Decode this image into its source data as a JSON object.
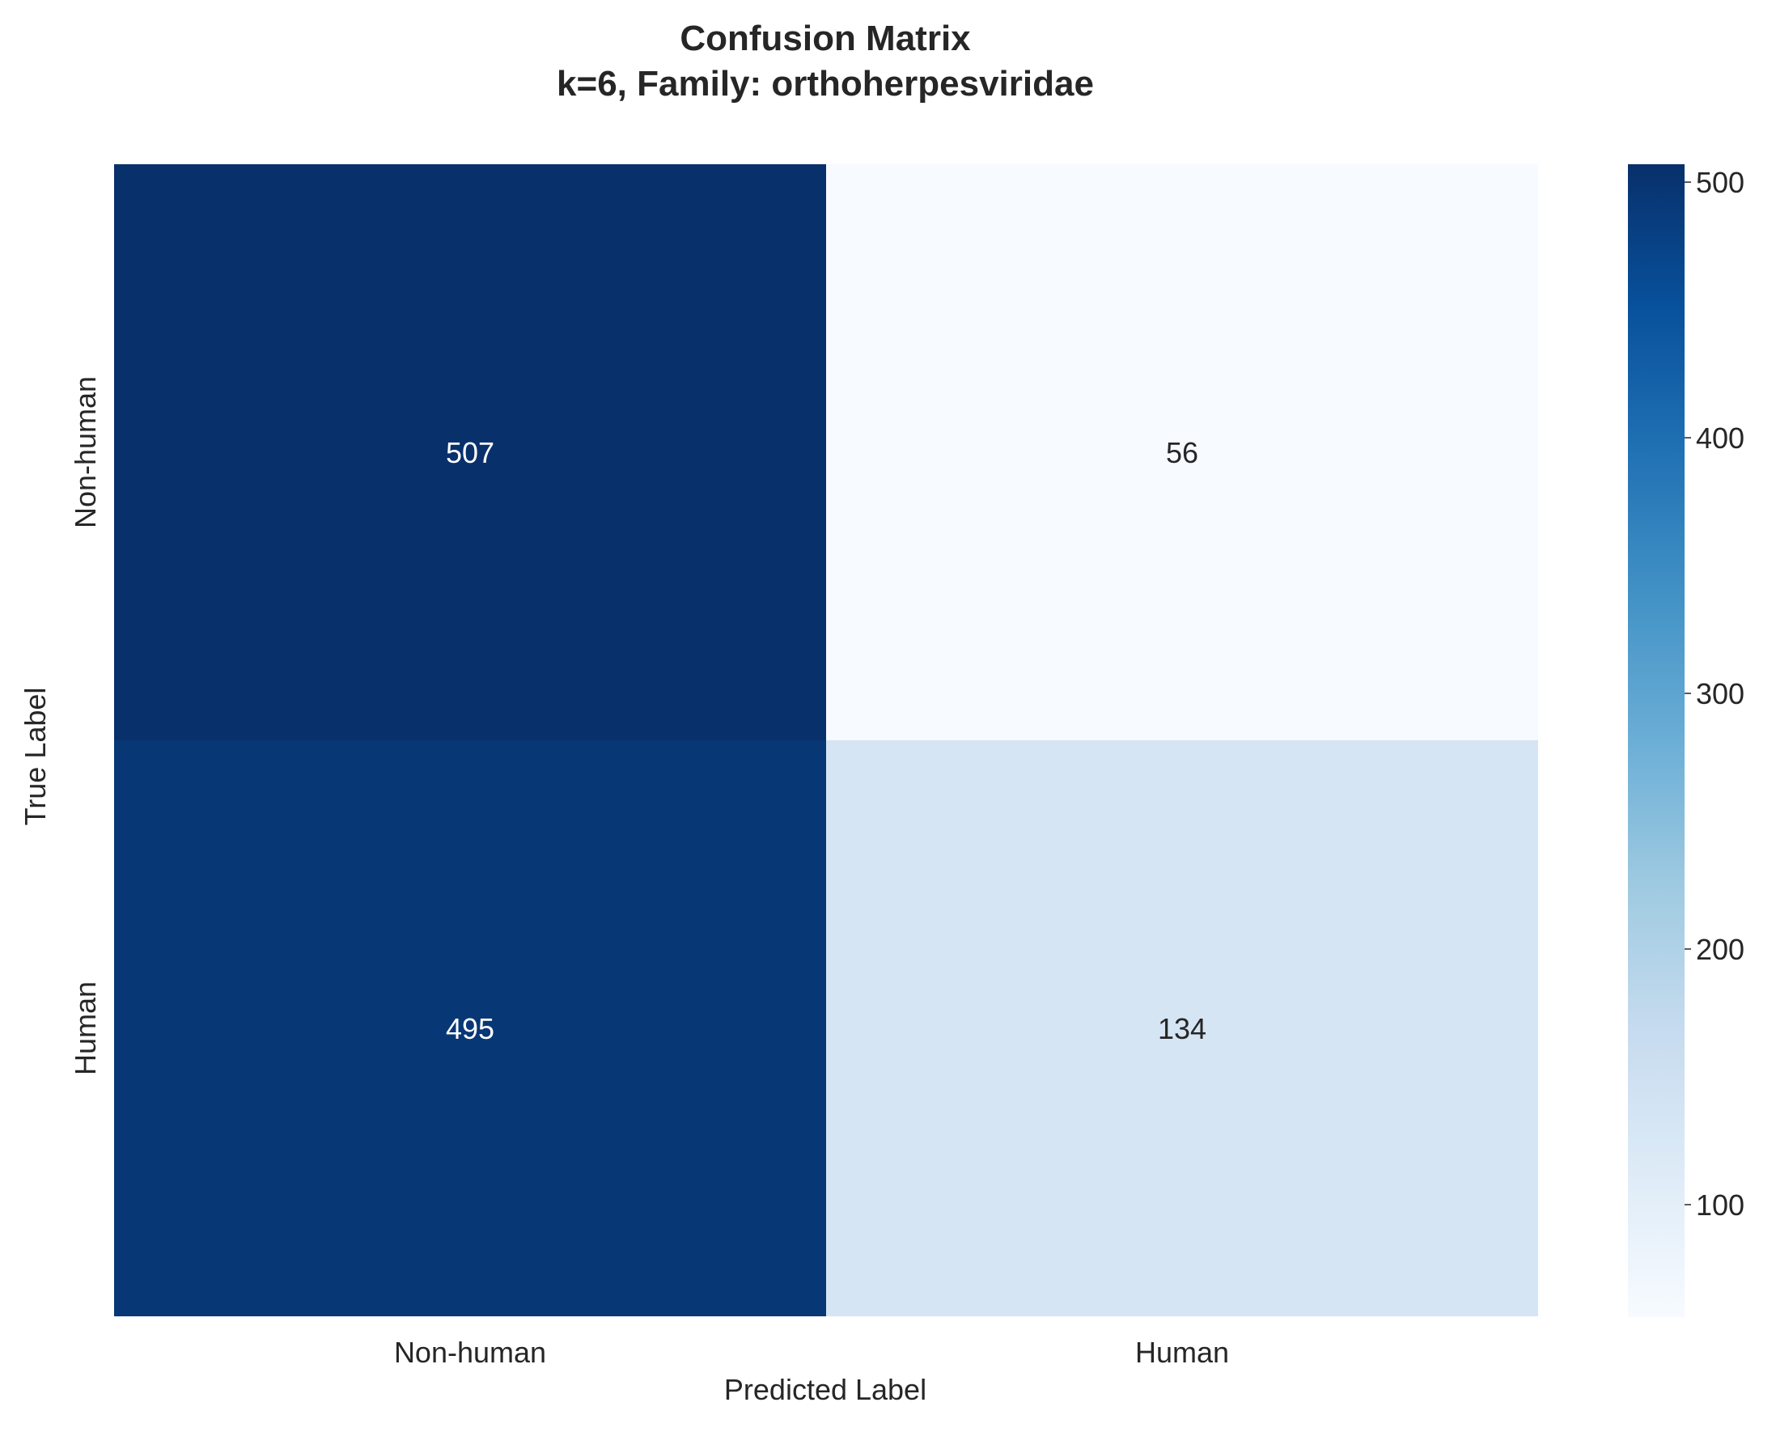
{
  "chart_data": {
    "type": "heatmap",
    "title": "Confusion Matrix",
    "subtitle": "k=6, Family: orthoherpesviridae",
    "xlabel": "Predicted Label",
    "ylabel": "True Label",
    "x_categories": [
      "Non-human",
      "Human"
    ],
    "y_categories": [
      "Non-human",
      "Human"
    ],
    "matrix": [
      [
        507,
        56
      ],
      [
        495,
        134
      ]
    ],
    "colormap": "Blues",
    "colorbar": {
      "min": 56,
      "max": 507,
      "ticks": [
        100,
        200,
        300,
        400,
        500
      ]
    },
    "colors": {
      "low": "#f7fbff",
      "high": "#08306b",
      "text_dark": "#262626",
      "text_light": "#ffffff"
    }
  }
}
